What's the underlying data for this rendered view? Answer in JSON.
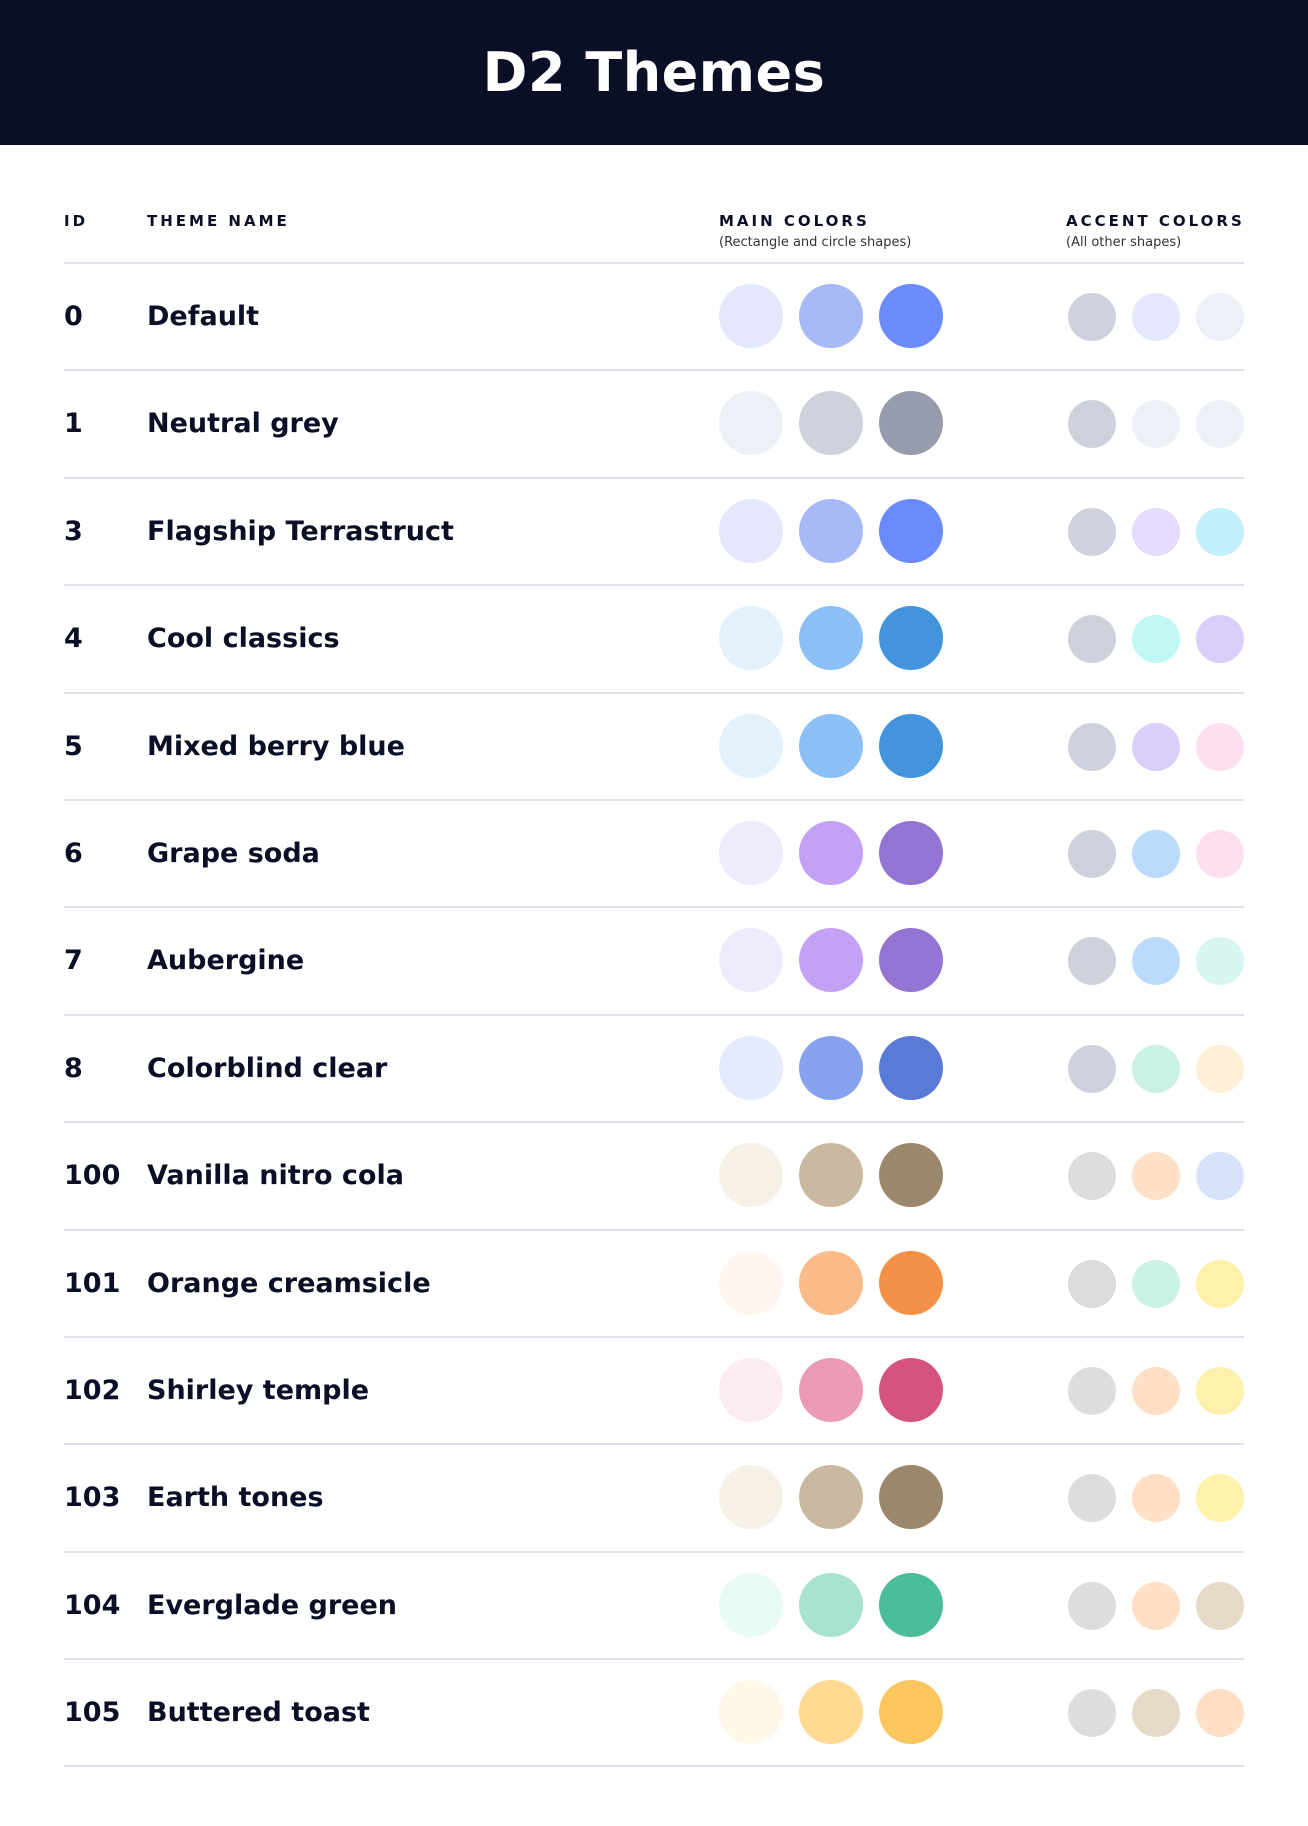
{
  "title": "D2 Themes",
  "columns": {
    "id": "ID",
    "name": "THEME NAME",
    "main": "MAIN COLORS",
    "main_sub": "(Rectangle and circle shapes)",
    "accent": "ACCENT COLORS",
    "accent_sub": "(All other shapes)"
  },
  "themes": [
    {
      "id": "0",
      "name": "Default",
      "main": [
        "#E5E8FD",
        "#A8B9F7",
        "#6B8AFB"
      ],
      "accent": [
        "#CFD2DD",
        "#E5E8FD",
        "#EEF0F7"
      ]
    },
    {
      "id": "1",
      "name": "Neutral grey",
      "main": [
        "#EEF0F7",
        "#CFD2DD",
        "#979CAD"
      ],
      "accent": [
        "#CFD2DD",
        "#EEF0F7",
        "#EEF0F7"
      ]
    },
    {
      "id": "3",
      "name": "Flagship Terrastruct",
      "main": [
        "#E5E8FD",
        "#A8B9F7",
        "#6B8AFB"
      ],
      "accent": [
        "#CFD2DD",
        "#E4DBFE",
        "#C2EEFE"
      ]
    },
    {
      "id": "4",
      "name": "Cool classics",
      "main": [
        "#E3F1FD",
        "#8CC0F4",
        "#4393DD"
      ],
      "accent": [
        "#CFD2DD",
        "#C1F8F5",
        "#DACEFB"
      ]
    },
    {
      "id": "5",
      "name": "Mixed berry blue",
      "main": [
        "#E3F1FD",
        "#8CC0F4",
        "#4393DD"
      ],
      "accent": [
        "#CFD2DD",
        "#DACEFB",
        "#FEDFF0"
      ]
    },
    {
      "id": "6",
      "name": "Grape soda",
      "main": [
        "#EFEBFD",
        "#C3A2F5",
        "#9374D2"
      ],
      "accent": [
        "#CFD2DD",
        "#BADBFC",
        "#FEDFF0"
      ]
    },
    {
      "id": "7",
      "name": "Aubergine",
      "main": [
        "#EFEBFD",
        "#C3A2F5",
        "#9374D2"
      ],
      "accent": [
        "#CFD2DD",
        "#BADBFC",
        "#D7F5F1"
      ]
    },
    {
      "id": "8",
      "name": "Colorblind clear",
      "main": [
        "#E5EAFD",
        "#87A2ED",
        "#5A7BD5"
      ],
      "accent": [
        "#CFD2DD",
        "#C9F1E4",
        "#FEF0D7"
      ]
    },
    {
      "id": "100",
      "name": "Vanilla nitro cola",
      "main": [
        "#F7F0E6",
        "#C9B9A0",
        "#9B876B"
      ],
      "accent": [
        "#DFDDDB",
        "#FFE0C6",
        "#D6E2FB"
      ]
    },
    {
      "id": "101",
      "name": "Orange creamsicle",
      "main": [
        "#FFF6F2",
        "#FABB8B",
        "#F29147"
      ],
      "accent": [
        "#DFDDDB",
        "#C9F1E4",
        "#FFF1AB"
      ]
    },
    {
      "id": "102",
      "name": "Shirley temple",
      "main": [
        "#FCECF1",
        "#EA9AB5",
        "#D45380"
      ],
      "accent": [
        "#DFDDDB",
        "#FFE0C6",
        "#FFF1AB"
      ]
    },
    {
      "id": "103",
      "name": "Earth tones",
      "main": [
        "#F7F0E6",
        "#C9B9A0",
        "#9B876B"
      ],
      "accent": [
        "#DFDDDB",
        "#FFE0C6",
        "#FFF1AB"
      ]
    },
    {
      "id": "104",
      "name": "Everglade green",
      "main": [
        "#E8FBF4",
        "#A7E3CF",
        "#4BBD9B"
      ],
      "accent": [
        "#DFDDDB",
        "#FFE0C6",
        "#E7DAC8"
      ]
    },
    {
      "id": "105",
      "name": "Buttered toast",
      "main": [
        "#FFF7E7",
        "#FFDA92",
        "#FAC65D"
      ],
      "accent": [
        "#DFDDDB",
        "#E7DAC8",
        "#FFE0C6"
      ]
    }
  ]
}
